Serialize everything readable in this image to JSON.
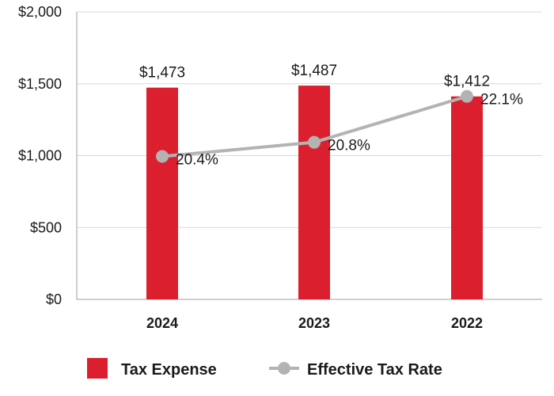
{
  "chart_data": {
    "type": "bar",
    "categories": [
      "2024",
      "2023",
      "2022"
    ],
    "series": [
      {
        "name": "Tax Expense",
        "type": "bar",
        "axis": "left",
        "values": [
          1473,
          1487,
          1412
        ],
        "labels": [
          "$1,473",
          "$1,487",
          "$1,412"
        ],
        "color": "#dc1f2e"
      },
      {
        "name": "Effective Tax Rate",
        "type": "line",
        "axis": "secondary-hidden",
        "values": [
          20.4,
          20.8,
          22.1
        ],
        "labels": [
          "20.4%",
          "20.8%",
          "22.1%"
        ],
        "color": "#b3b3b3"
      }
    ],
    "y_axis": {
      "ylim": [
        0,
        2000
      ],
      "ticks": [
        0,
        500,
        1000,
        1500,
        2000
      ],
      "tick_labels": [
        "$0",
        "$500",
        "$1,000",
        "$1,500",
        "$2,000"
      ]
    },
    "grid": true,
    "legend_position": "bottom-center",
    "colors": {
      "bar": "#dc1f2e",
      "line": "#b3b3b3",
      "grid": "#d9d9d9",
      "axis": "#bfbfbf",
      "text": "#1a1a1a"
    }
  }
}
